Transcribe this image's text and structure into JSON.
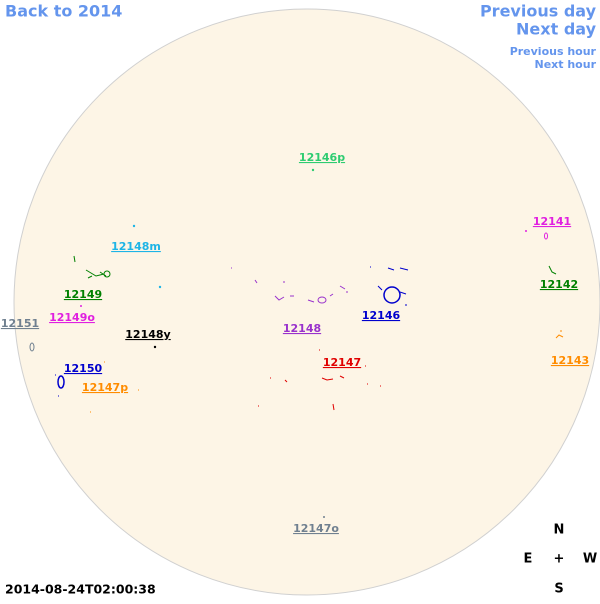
{
  "nav": {
    "back_year": "Back to 2014",
    "previous_day": "Previous day",
    "next_day": "Next day",
    "previous_hour": "Previous hour",
    "next_hour": "Next hour"
  },
  "regions": [
    {
      "label": "12146p",
      "color": "#2ecc71"
    },
    {
      "label": "12141",
      "color": "#e020e0"
    },
    {
      "label": "12148m",
      "color": "#1eb4e6"
    },
    {
      "label": "12149",
      "color": "#008000"
    },
    {
      "label": "12142",
      "color": "#008000"
    },
    {
      "label": "12151",
      "color": "#708090"
    },
    {
      "label": "12149o",
      "color": "#e020e0"
    },
    {
      "label": "12148y",
      "color": "#000000"
    },
    {
      "label": "12148",
      "color": "#9932cc"
    },
    {
      "label": "12146",
      "color": "#0000cd"
    },
    {
      "label": "12147",
      "color": "#e00000"
    },
    {
      "label": "12150",
      "color": "#0000cd"
    },
    {
      "label": "12143",
      "color": "#ff8c00"
    },
    {
      "label": "12147p",
      "color": "#ff8c00"
    },
    {
      "label": "12147o",
      "color": "#708090"
    }
  ],
  "compass": {
    "north": "N",
    "east": "E",
    "center": "+",
    "west": "W",
    "south": "S"
  },
  "timestamp": "2014-08-24T02:00:38"
}
